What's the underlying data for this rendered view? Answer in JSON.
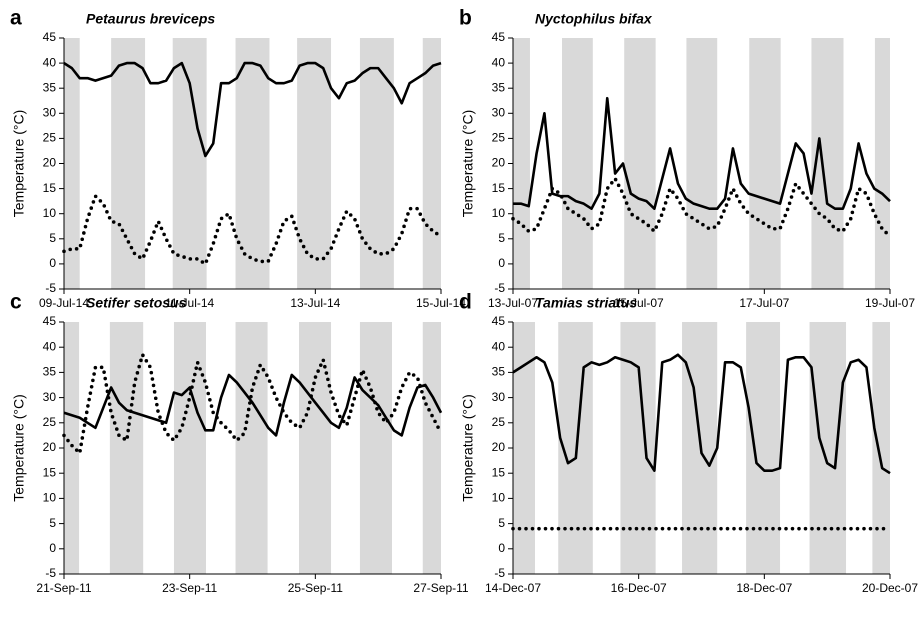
{
  "chart_data": [
    {
      "type": "line",
      "label": "a",
      "title": "Petaurus breviceps",
      "ylabel": "Temperature (°C)",
      "x": [
        0,
        0.125,
        0.25,
        0.375,
        0.5,
        0.625,
        0.75,
        0.875,
        1,
        1.125,
        1.25,
        1.375,
        1.5,
        1.625,
        1.75,
        1.875,
        2,
        2.125,
        2.25,
        2.375,
        2.5,
        2.625,
        2.75,
        2.875,
        3,
        3.125,
        3.25,
        3.375,
        3.5,
        3.625,
        3.75,
        3.875,
        4,
        4.125,
        4.25,
        4.375,
        4.5,
        4.625,
        4.75,
        4.875,
        5,
        5.125,
        5.25,
        5.375,
        5.5,
        5.625,
        5.75,
        5.875,
        6
      ],
      "xlim": [
        0,
        6
      ],
      "xticks": [
        {
          "value": 0,
          "label": "09-Jul-14"
        },
        {
          "value": 2,
          "label": "11-Jul-14"
        },
        {
          "value": 4,
          "label": "13-Jul-14"
        },
        {
          "value": 6,
          "label": "15-Jul-14"
        }
      ],
      "ylim": [
        -5,
        45
      ],
      "yticks": [
        -5,
        0,
        5,
        10,
        15,
        20,
        25,
        30,
        35,
        40,
        45
      ],
      "night_bands": [
        [
          0,
          0.25
        ],
        [
          0.75,
          1.29
        ],
        [
          1.73,
          2.27
        ],
        [
          2.73,
          3.27
        ],
        [
          3.71,
          4.25
        ],
        [
          4.71,
          5.25
        ],
        [
          5.71,
          6
        ]
      ],
      "band_color": "#d9d9d9",
      "series": [
        {
          "color": "#000000",
          "style": "solid",
          "values": [
            40,
            39,
            37,
            37,
            36.5,
            37,
            37.5,
            39.5,
            40,
            40,
            39,
            36,
            36,
            36.5,
            39,
            40,
            36,
            27,
            21.5,
            24,
            36,
            36,
            37,
            40,
            40,
            39.5,
            37,
            36,
            36,
            36.5,
            39.5,
            40,
            40,
            39,
            35,
            33,
            36,
            36.5,
            38,
            39,
            39,
            37,
            35,
            32,
            36,
            37,
            38,
            39.5,
            40
          ]
        },
        {
          "color": "#000000",
          "style": "dotted",
          "values": [
            2.5,
            3,
            3,
            9,
            13.5,
            12,
            8.5,
            8,
            5,
            2,
            1,
            4.5,
            8.5,
            5,
            2,
            1.5,
            1,
            1,
            0,
            4,
            9,
            10,
            5,
            2,
            1,
            0.5,
            0.5,
            4,
            8.5,
            9.5,
            5,
            2,
            1,
            1,
            3,
            7,
            10.5,
            9,
            5,
            3,
            2,
            2,
            3,
            6,
            11,
            11,
            8,
            6.5,
            5.5
          ]
        }
      ]
    },
    {
      "type": "line",
      "label": "b",
      "title": "Nyctophilus bifax",
      "ylabel": "Temperature (°C)",
      "x": [
        0,
        0.125,
        0.25,
        0.375,
        0.5,
        0.625,
        0.75,
        0.875,
        1,
        1.125,
        1.25,
        1.375,
        1.5,
        1.625,
        1.75,
        1.875,
        2,
        2.125,
        2.25,
        2.375,
        2.5,
        2.625,
        2.75,
        2.875,
        3,
        3.125,
        3.25,
        3.375,
        3.5,
        3.625,
        3.75,
        3.875,
        4,
        4.125,
        4.25,
        4.375,
        4.5,
        4.625,
        4.75,
        4.875,
        5,
        5.125,
        5.25,
        5.375,
        5.5,
        5.625,
        5.75,
        5.875,
        6
      ],
      "xlim": [
        0,
        6
      ],
      "xticks": [
        {
          "value": 0,
          "label": "13-Jul-07"
        },
        {
          "value": 2,
          "label": "15-Jul-07"
        },
        {
          "value": 4,
          "label": "17-Jul-07"
        },
        {
          "value": 6,
          "label": "19-Jul-07"
        }
      ],
      "ylim": [
        -5,
        45
      ],
      "yticks": [
        -5,
        0,
        5,
        10,
        15,
        20,
        25,
        30,
        35,
        40,
        45
      ],
      "night_bands": [
        [
          0,
          0.27
        ],
        [
          0.78,
          1.27
        ],
        [
          1.77,
          2.27
        ],
        [
          2.76,
          3.25
        ],
        [
          3.76,
          4.26
        ],
        [
          4.75,
          5.26
        ],
        [
          5.76,
          6
        ]
      ],
      "band_color": "#d9d9d9",
      "series": [
        {
          "color": "#000000",
          "style": "solid",
          "values": [
            12,
            12,
            11.5,
            22,
            30,
            14,
            13.5,
            13.5,
            12.5,
            12,
            11,
            14,
            33,
            18,
            20,
            14,
            13,
            12.5,
            11,
            17,
            23,
            16,
            13,
            12,
            11.5,
            11,
            11,
            13,
            23,
            16,
            14,
            13.5,
            13,
            12.5,
            12,
            18,
            24,
            22,
            14,
            25,
            12,
            11,
            11,
            15,
            24,
            18,
            15,
            14,
            12.5
          ]
        },
        {
          "color": "#000000",
          "style": "dotted",
          "values": [
            9,
            8,
            6.5,
            7,
            11,
            15,
            14,
            11,
            10,
            9,
            7,
            8,
            15,
            17,
            14,
            10,
            9,
            8,
            6.5,
            10,
            15,
            13,
            10,
            9,
            8,
            7,
            7.5,
            11,
            15,
            12,
            10,
            9,
            8,
            7,
            7,
            11,
            16,
            14,
            12,
            10,
            9,
            7,
            6.5,
            9,
            15,
            14,
            10,
            7,
            5.5
          ]
        }
      ]
    },
    {
      "type": "line",
      "label": "c",
      "title": "Setifer setosus",
      "ylabel": "Temperature (°C)",
      "x": [
        0,
        0.125,
        0.25,
        0.375,
        0.5,
        0.625,
        0.75,
        0.875,
        1,
        1.125,
        1.25,
        1.375,
        1.5,
        1.625,
        1.75,
        1.875,
        2,
        2.125,
        2.25,
        2.375,
        2.5,
        2.625,
        2.75,
        2.875,
        3,
        3.125,
        3.25,
        3.375,
        3.5,
        3.625,
        3.75,
        3.875,
        4,
        4.125,
        4.25,
        4.375,
        4.5,
        4.625,
        4.75,
        4.875,
        5,
        5.125,
        5.25,
        5.375,
        5.5,
        5.625,
        5.75,
        5.875,
        6
      ],
      "xlim": [
        0,
        6
      ],
      "xticks": [
        {
          "value": 0,
          "label": "21-Sep-11"
        },
        {
          "value": 2,
          "label": "23-Sep-11"
        },
        {
          "value": 4,
          "label": "25-Sep-11"
        },
        {
          "value": 6,
          "label": "27-Sep-11"
        }
      ],
      "ylim": [
        -5,
        45
      ],
      "yticks": [
        -5,
        0,
        5,
        10,
        15,
        20,
        25,
        30,
        35,
        40,
        45
      ],
      "night_bands": [
        [
          0,
          0.24
        ],
        [
          0.73,
          1.26
        ],
        [
          1.75,
          2.26
        ],
        [
          2.73,
          3.24
        ],
        [
          3.74,
          4.25
        ],
        [
          4.71,
          5.22
        ],
        [
          5.71,
          6
        ]
      ],
      "band_color": "#d9d9d9",
      "series": [
        {
          "color": "#000000",
          "style": "solid",
          "values": [
            27,
            26.5,
            26,
            25,
            24,
            28,
            32,
            29,
            27.5,
            27,
            26.5,
            26,
            25.5,
            25,
            31,
            30.5,
            32,
            27,
            23.5,
            23.5,
            30,
            34.5,
            33,
            31,
            29,
            26.5,
            24,
            22.5,
            29,
            34.5,
            33,
            31,
            29,
            27,
            25,
            24,
            28,
            34,
            31.5,
            30,
            28.5,
            26,
            23.5,
            22.5,
            28,
            32,
            32.5,
            30,
            27
          ]
        },
        {
          "color": "#000000",
          "style": "dotted",
          "values": [
            22.5,
            20.5,
            19,
            28,
            36,
            36,
            27,
            22.5,
            21.5,
            33,
            38.5,
            36,
            27,
            23,
            21.5,
            24,
            30,
            37,
            33,
            27,
            25,
            23.5,
            21.5,
            23,
            32,
            36.5,
            34,
            30,
            27,
            25,
            24,
            27,
            34,
            37.5,
            31,
            26.5,
            24.5,
            30,
            35.5,
            32,
            27,
            25,
            27,
            32,
            35,
            34,
            29,
            26,
            23
          ]
        }
      ]
    },
    {
      "type": "line",
      "label": "d",
      "title": "Tamias striatus",
      "ylabel": "Temperature (°C)",
      "x": [
        0,
        0.125,
        0.25,
        0.375,
        0.5,
        0.625,
        0.75,
        0.875,
        1,
        1.125,
        1.25,
        1.375,
        1.5,
        1.625,
        1.75,
        1.875,
        2,
        2.125,
        2.25,
        2.375,
        2.5,
        2.625,
        2.75,
        2.875,
        3,
        3.125,
        3.25,
        3.375,
        3.5,
        3.625,
        3.75,
        3.875,
        4,
        4.125,
        4.25,
        4.375,
        4.5,
        4.625,
        4.75,
        4.875,
        5,
        5.125,
        5.25,
        5.375,
        5.5,
        5.625,
        5.75,
        5.875,
        6
      ],
      "xlim": [
        0,
        6
      ],
      "xticks": [
        {
          "value": 0,
          "label": "14-Dec-07"
        },
        {
          "value": 2,
          "label": "16-Dec-07"
        },
        {
          "value": 4,
          "label": "18-Dec-07"
        },
        {
          "value": 6,
          "label": "20-Dec-07"
        }
      ],
      "ylim": [
        -5,
        45
      ],
      "yticks": [
        -5,
        0,
        5,
        10,
        15,
        20,
        25,
        30,
        35,
        40,
        45
      ],
      "night_bands": [
        [
          0,
          0.35
        ],
        [
          0.72,
          1.27
        ],
        [
          1.71,
          2.27
        ],
        [
          2.69,
          3.25
        ],
        [
          3.71,
          4.25
        ],
        [
          4.72,
          5.3
        ],
        [
          5.72,
          6
        ]
      ],
      "band_color": "#d9d9d9",
      "series": [
        {
          "color": "#000000",
          "style": "solid",
          "values": [
            35,
            36,
            37,
            38,
            37,
            33,
            22,
            17,
            18,
            36,
            37,
            36.5,
            37,
            38,
            37.5,
            37,
            36,
            18,
            15.5,
            37,
            37.5,
            38.5,
            37,
            32,
            19,
            16.5,
            20,
            37,
            37,
            36,
            28,
            17,
            15.5,
            15.5,
            16,
            37.5,
            38,
            38,
            36,
            22,
            17,
            16,
            33,
            37,
            37.5,
            36,
            24,
            16,
            15
          ]
        },
        {
          "color": "#000000",
          "style": "dotted",
          "values": [
            4,
            4,
            4,
            4,
            4,
            4,
            4,
            4,
            4,
            4,
            4,
            4,
            4,
            4,
            4,
            4,
            4,
            4,
            4,
            4,
            4,
            4,
            4,
            4,
            4,
            4,
            4,
            4,
            4,
            4,
            4,
            4,
            4,
            4,
            4,
            4,
            4,
            4,
            4,
            4,
            4,
            4,
            4,
            4,
            4,
            4,
            4,
            4,
            4
          ]
        }
      ]
    }
  ]
}
